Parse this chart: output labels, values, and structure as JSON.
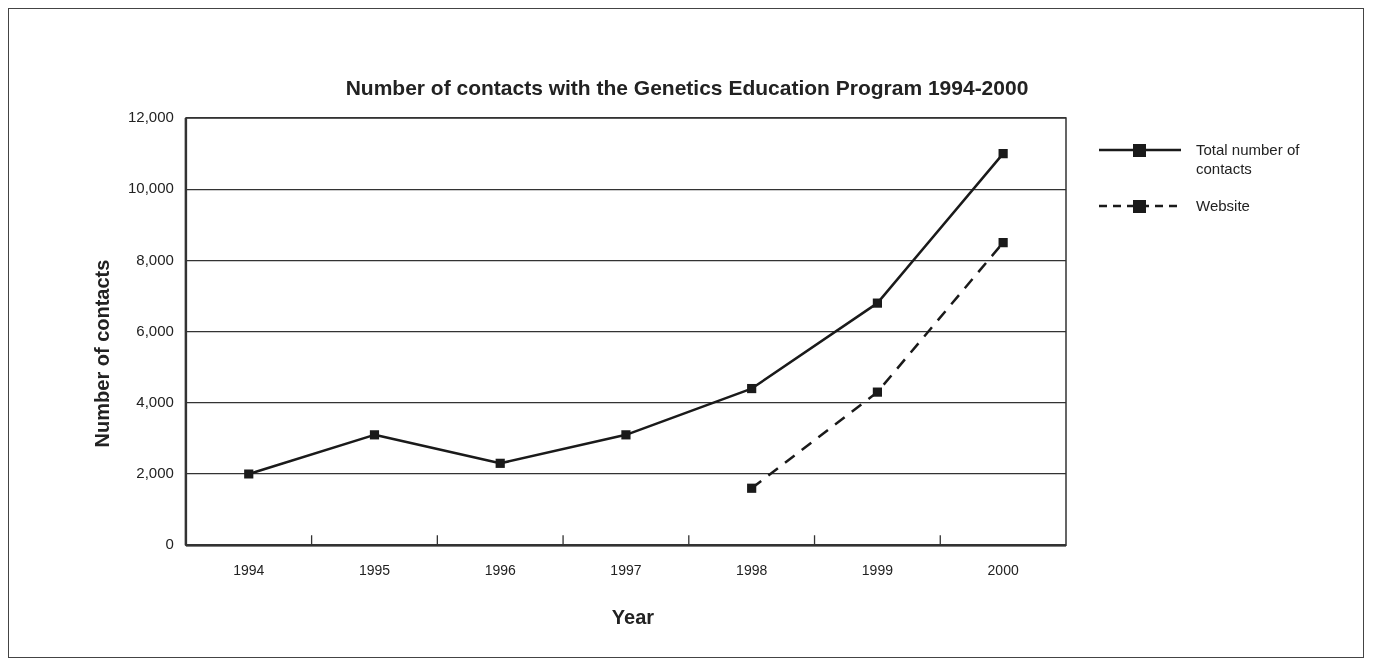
{
  "chart_data": {
    "type": "line",
    "title": "Number of contacts with the Genetics Education Program 1994-2000",
    "xlabel": "Year",
    "ylabel": "Number of contacts",
    "categories": [
      "1994",
      "1995",
      "1996",
      "1997",
      "1998",
      "1999",
      "2000"
    ],
    "series": [
      {
        "name": "Total number of contacts",
        "color": "#1a1a1a",
        "values": [
          2000,
          3100,
          2300,
          3100,
          4400,
          6800,
          11000
        ]
      },
      {
        "name": "Website",
        "color": "#1a1a1a",
        "line_style": "dashed",
        "values": [
          null,
          null,
          null,
          null,
          1600,
          4300,
          8500
        ]
      }
    ],
    "ylim": [
      0,
      12000
    ],
    "yticks": [
      0,
      {
        "value": 2000,
        "label": "2,000"
      },
      {
        "value": 4000,
        "label": "4,000"
      },
      {
        "value": 6000,
        "label": "6,000"
      },
      {
        "value": 8000,
        "label": "8,000"
      },
      {
        "value": 10000,
        "label": "10,000"
      },
      {
        "value": 12000,
        "label": "12,000"
      }
    ],
    "grid": "y",
    "legend": "right",
    "marker": "square",
    "line_style": "solid"
  }
}
